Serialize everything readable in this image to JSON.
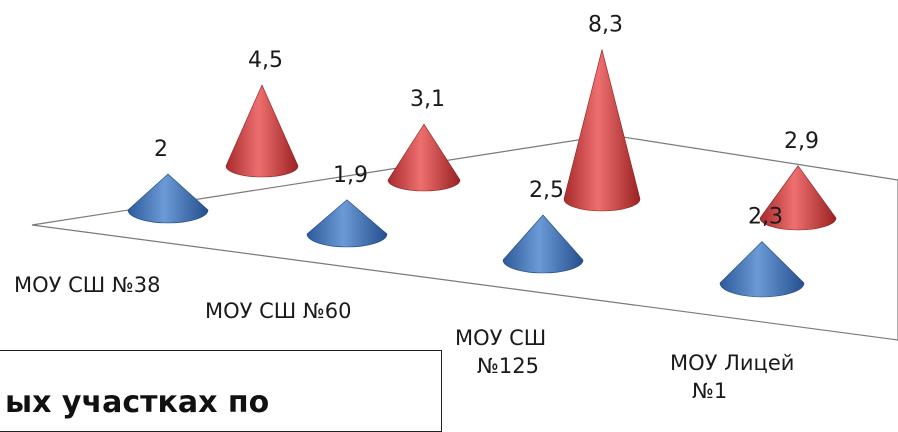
{
  "chart_data": {
    "type": "bar",
    "style": "3d-cone",
    "categories": [
      [
        "МОУ СШ №38"
      ],
      [
        "МОУ СШ №60"
      ],
      [
        "МОУ СШ",
        "№125"
      ],
      [
        "МОУ Лицей",
        "№1"
      ]
    ],
    "series": [
      {
        "values": [
          2,
          1.9,
          2.5,
          2.3
        ],
        "labels": [
          "2",
          "1,9",
          "2,5",
          "2,3"
        ],
        "color": "#3a6fb8"
      },
      {
        "values": [
          4.5,
          3.1,
          8.3,
          2.9
        ],
        "labels": [
          "4,5",
          "3,1",
          "8,3",
          "2,9"
        ],
        "color": "#cc3b3b"
      }
    ],
    "legend": "none",
    "grid": false
  },
  "caption": {
    "text": "ых участках по"
  }
}
